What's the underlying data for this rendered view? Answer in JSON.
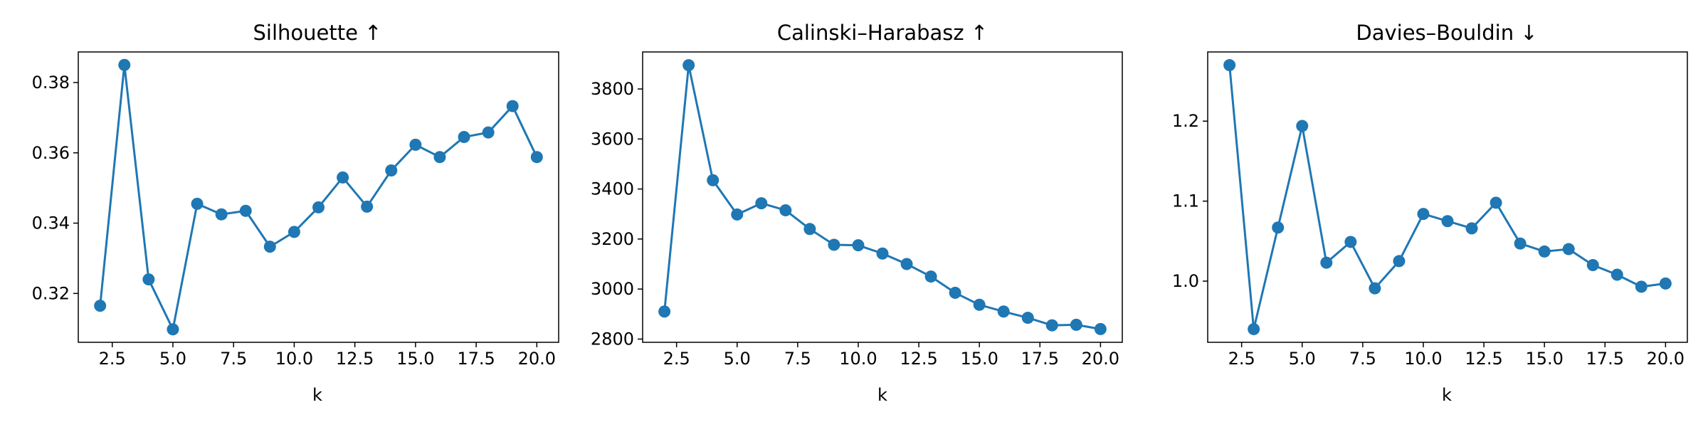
{
  "chart_data": [
    {
      "type": "line",
      "title": "Silhouette ↑",
      "xlabel": "k",
      "ylabel": "",
      "x": [
        2,
        3,
        4,
        5,
        6,
        7,
        8,
        9,
        10,
        11,
        12,
        13,
        14,
        15,
        16,
        17,
        18,
        19,
        20
      ],
      "series": [
        {
          "values": [
            0.3165,
            0.385,
            0.324,
            0.3098,
            0.3455,
            0.3425,
            0.3435,
            0.3333,
            0.3375,
            0.3445,
            0.353,
            0.3447,
            0.355,
            0.3623,
            0.3588,
            0.3645,
            0.3658,
            0.3733,
            0.3588
          ],
          "color": "#1f77b4"
        }
      ],
      "xlim": [
        1.1,
        20.9
      ],
      "ylim": [
        0.3061,
        0.3887
      ],
      "xticks": [
        2.5,
        5.0,
        7.5,
        10.0,
        12.5,
        15.0,
        17.5,
        20.0
      ],
      "xtick_labels": [
        "2.5",
        "5.0",
        "7.5",
        "10.0",
        "12.5",
        "15.0",
        "17.5",
        "20.0"
      ],
      "yticks": [
        0.32,
        0.34,
        0.36,
        0.38
      ],
      "ytick_labels": [
        "0.32",
        "0.34",
        "0.36",
        "0.38"
      ],
      "grid": false,
      "marker": "circle"
    },
    {
      "type": "line",
      "title": "Calinski–Harabasz ↑",
      "xlabel": "k",
      "ylabel": "",
      "x": [
        2,
        3,
        4,
        5,
        6,
        7,
        8,
        9,
        10,
        11,
        12,
        13,
        14,
        15,
        16,
        17,
        18,
        19,
        20
      ],
      "series": [
        {
          "values": [
            2910,
            3895,
            3435,
            3298,
            3343,
            3315,
            3240,
            3177,
            3175,
            3142,
            3100,
            3050,
            2985,
            2937,
            2910,
            2885,
            2855,
            2857,
            2840
          ],
          "color": "#1f77b4"
        }
      ],
      "xlim": [
        1.1,
        20.9
      ],
      "ylim": [
        2787,
        3948
      ],
      "xticks": [
        2.5,
        5.0,
        7.5,
        10.0,
        12.5,
        15.0,
        17.5,
        20.0
      ],
      "xtick_labels": [
        "2.5",
        "5.0",
        "7.5",
        "10.0",
        "12.5",
        "15.0",
        "17.5",
        "20.0"
      ],
      "yticks": [
        2800,
        3000,
        3200,
        3400,
        3600,
        3800
      ],
      "ytick_labels": [
        "2800",
        "3000",
        "3200",
        "3400",
        "3600",
        "3800"
      ],
      "grid": false,
      "marker": "circle"
    },
    {
      "type": "line",
      "title": "Davies–Bouldin ↓",
      "xlabel": "k",
      "ylabel": "",
      "x": [
        2,
        3,
        4,
        5,
        6,
        7,
        8,
        9,
        10,
        11,
        12,
        13,
        14,
        15,
        16,
        17,
        18,
        19,
        20
      ],
      "series": [
        {
          "values": [
            1.27,
            0.94,
            1.067,
            1.194,
            1.023,
            1.049,
            0.991,
            1.025,
            1.084,
            1.075,
            1.066,
            1.098,
            1.047,
            1.037,
            1.04,
            1.02,
            1.008,
            0.993,
            0.997
          ],
          "color": "#1f77b4"
        }
      ],
      "xlim": [
        1.1,
        20.9
      ],
      "ylim": [
        0.9235,
        1.2865
      ],
      "xticks": [
        2.5,
        5.0,
        7.5,
        10.0,
        12.5,
        15.0,
        17.5,
        20.0
      ],
      "xtick_labels": [
        "2.5",
        "5.0",
        "7.5",
        "10.0",
        "12.5",
        "15.0",
        "17.5",
        "20.0"
      ],
      "yticks": [
        1.0,
        1.1,
        1.2
      ],
      "ytick_labels": [
        "1.0",
        "1.1",
        "1.2"
      ],
      "grid": false,
      "marker": "circle"
    }
  ]
}
